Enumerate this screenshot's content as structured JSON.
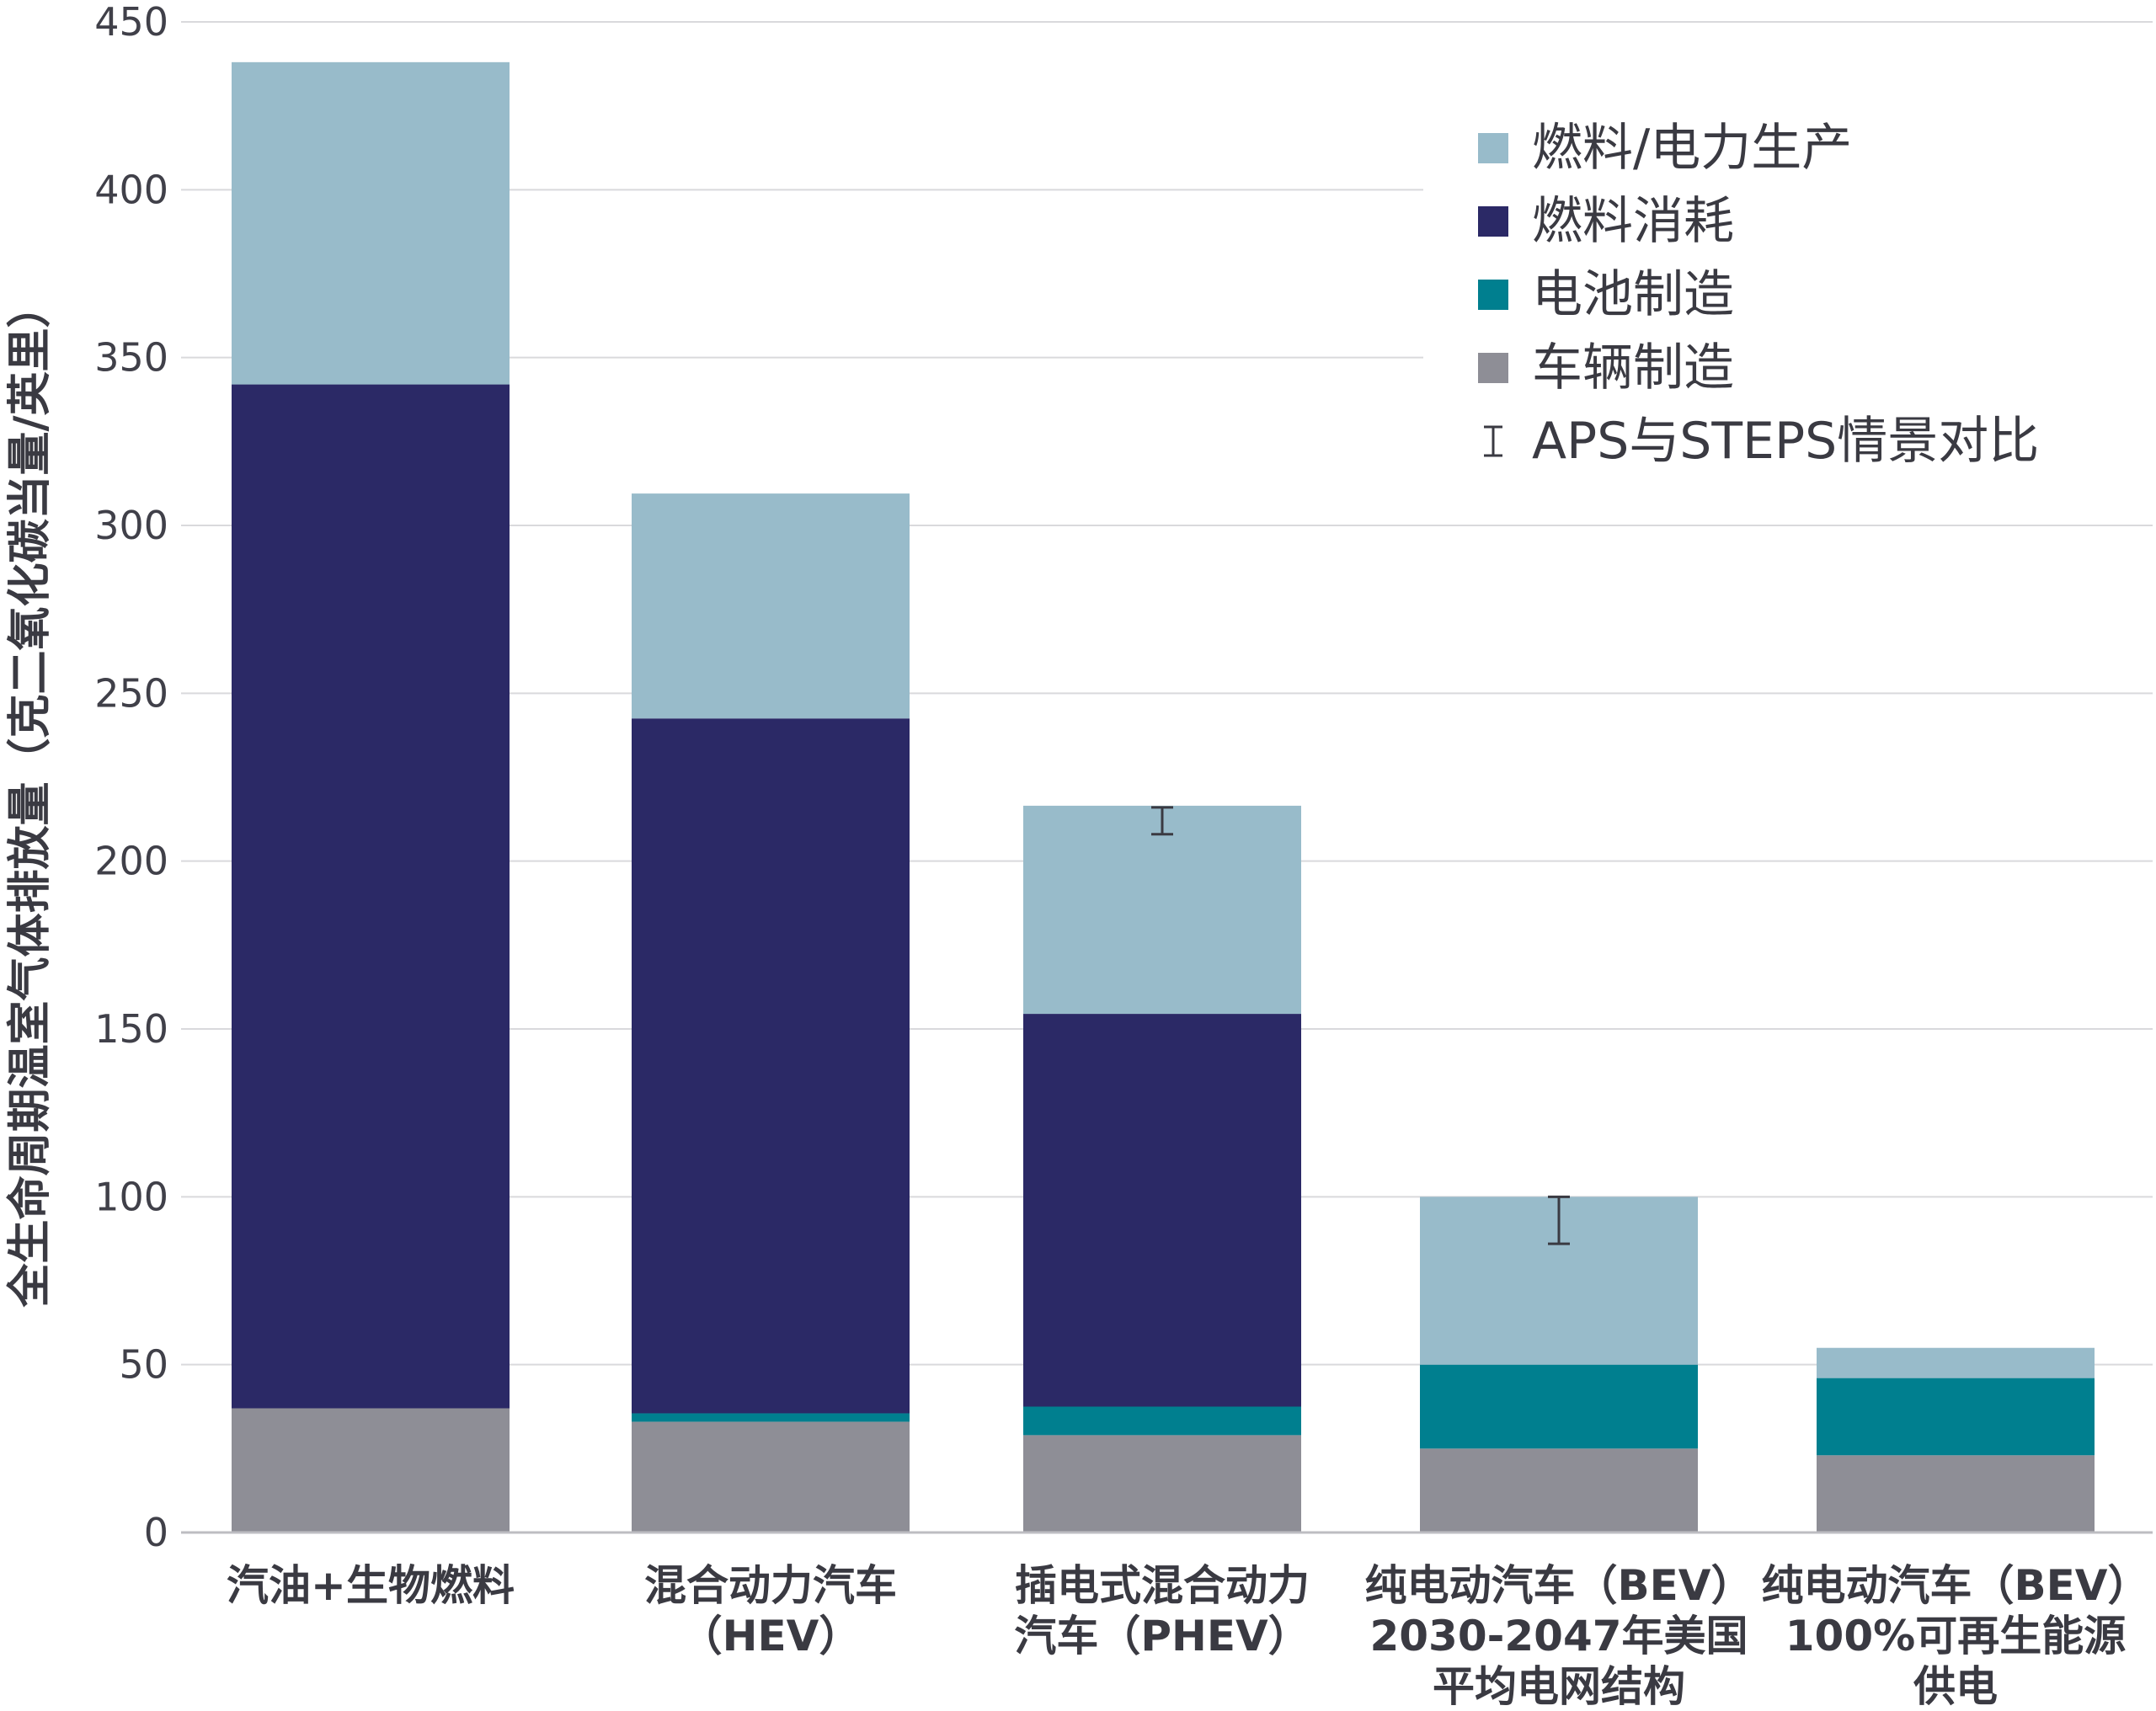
{
  "chart_data": {
    "type": "bar",
    "stacked": true,
    "ylabel": "全生命周期温室气体排放量（克二氧化碳当量/英里）",
    "xlabel": "",
    "ylim": [
      0,
      450
    ],
    "yticks": [
      "0",
      "50",
      "100",
      "150",
      "200",
      "250",
      "300",
      "350",
      "400",
      "450"
    ],
    "grid": "horizontal",
    "legend_position": "top-right",
    "categories": [
      [
        "汽油+生物燃料"
      ],
      [
        "混合动力汽车",
        "（HEV）"
      ],
      [
        "插电式混合动力",
        "汽车（PHEV）"
      ],
      [
        "纯电动汽车（BEV）",
        "2030-2047年美国",
        "平均电网结构"
      ],
      [
        "纯电动汽车（BEV）",
        "100%可再生能源",
        "供电"
      ]
    ],
    "series": [
      {
        "name": "车辆制造",
        "color": "#8e8e96",
        "values": [
          37,
          33,
          29,
          25,
          23
        ]
      },
      {
        "name": "电池制造",
        "color": "#007f8f",
        "values": [
          0,
          2.5,
          8.5,
          25,
          23
        ]
      },
      {
        "name": "燃料消耗",
        "color": "#2b2966",
        "values": [
          305,
          207,
          117,
          0,
          0
        ]
      },
      {
        "name": "燃料/电力生产",
        "color": "#98bbca",
        "values": [
          96,
          67,
          62,
          50,
          9
        ]
      }
    ],
    "error_bars": [
      null,
      null,
      {
        "low": 208,
        "high": 216
      },
      {
        "low": 86,
        "high": 100
      },
      null
    ],
    "legend_order": [
      "燃料/电力生产",
      "燃料消耗",
      "电池制造",
      "车辆制造"
    ],
    "error_bar_legend": "APS与STEPS情景对比"
  }
}
